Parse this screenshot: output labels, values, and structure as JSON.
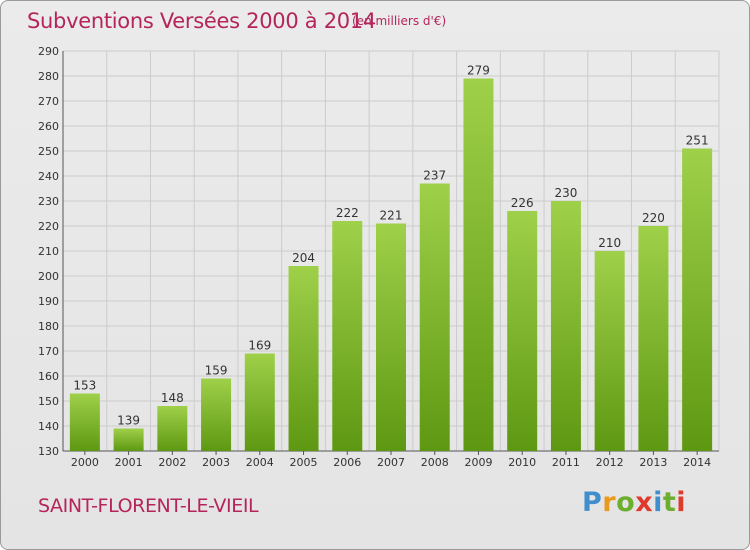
{
  "title": "Subventions Versées 2000 à 2014",
  "subtitle": "(en milliers d'€)",
  "city": "SAINT-FLORENT-LE-VIEIL",
  "logo": {
    "text": "Proxiti",
    "letter_colors": [
      "#3f8fcf",
      "#e89a1e",
      "#6dae2f",
      "#e03a2c",
      "#3f8fcf",
      "#6dae2f",
      "#e03a2c"
    ]
  },
  "colors": {
    "title": "#b5245a",
    "bar_top": "#9fd04a",
    "bar_bottom": "#5e9812",
    "grid": "#cccccc"
  },
  "chart_data": {
    "type": "bar",
    "categories": [
      "2000",
      "2001",
      "2002",
      "2003",
      "2004",
      "2005",
      "2006",
      "2007",
      "2008",
      "2009",
      "2010",
      "2011",
      "2012",
      "2013",
      "2014"
    ],
    "values": [
      153,
      139,
      148,
      159,
      169,
      204,
      222,
      221,
      237,
      279,
      226,
      230,
      210,
      220,
      251
    ],
    "title": "Subventions Versées 2000 à 2014",
    "subtitle": "(en milliers d'€)",
    "ylim": [
      130,
      290
    ],
    "yticks": [
      130,
      140,
      150,
      160,
      170,
      180,
      190,
      200,
      210,
      220,
      230,
      240,
      250,
      260,
      270,
      280,
      290
    ],
    "grid": true,
    "data_labels": true
  }
}
